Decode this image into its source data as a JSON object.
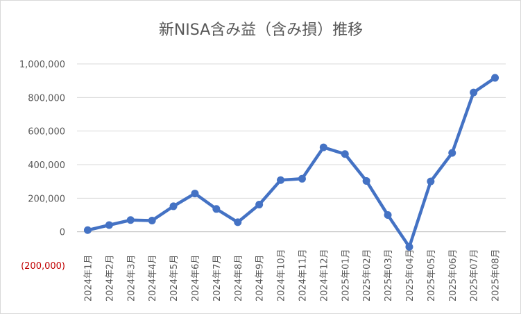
{
  "chart_data": {
    "type": "line",
    "title": "新NISA含み益（含み損）推移",
    "xlabel": "",
    "ylabel": "",
    "categories": [
      "2024年1月",
      "2024年2月",
      "2024年3月",
      "2024年4月",
      "2024年5月",
      "2024年6月",
      "2024年7月",
      "2024年8月",
      "2024年9月",
      "2024年10月",
      "2024年11月",
      "2024年12月",
      "2025年01月",
      "2025年02月",
      "2025年03月",
      "2025年04月",
      "2025年05月",
      "2025年06月",
      "2025年07月",
      "2025年08月"
    ],
    "series": [
      {
        "values": [
          10000,
          40000,
          70000,
          67000,
          152000,
          228000,
          136000,
          57000,
          162000,
          308000,
          316000,
          503000,
          463000,
          303000,
          100000,
          -90000,
          300000,
          470000,
          830000,
          917000
        ]
      }
    ],
    "ylim": [
      -200000,
      1000000
    ],
    "yticks": [
      -200000,
      0,
      200000,
      400000,
      600000,
      800000,
      1000000
    ],
    "ytick_labels": [
      "(200,000)",
      "0",
      "200,000",
      "400,000",
      "600,000",
      "800,000",
      "1,000,000"
    ],
    "grid": true,
    "legend": "none",
    "colors": {
      "line": "#4472c4",
      "negative_tick": "#c00000",
      "text": "#595959",
      "grid": "#d9d9d9"
    }
  }
}
